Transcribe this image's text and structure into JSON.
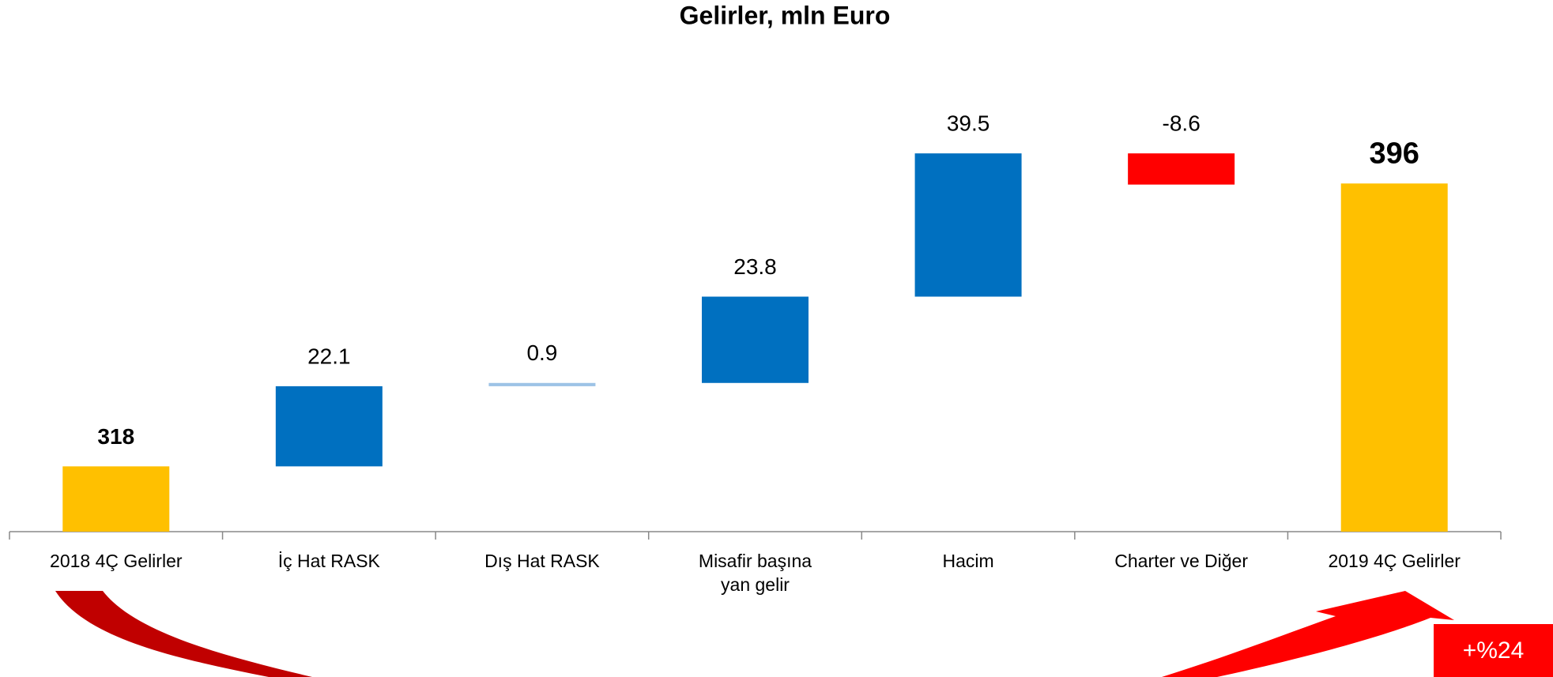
{
  "chart_data": {
    "type": "waterfall",
    "title": "Gelirler, mln Euro",
    "categories": [
      "2018 4Ç Gelirler",
      "İç Hat RASK",
      "Dış Hat RASK",
      "Misafir başına\nyan gelir",
      "Hacim",
      "Charter ve Diğer",
      "2019 4Ç Gelirler"
    ],
    "values": [
      318,
      22.1,
      0.9,
      23.8,
      39.5,
      -8.6,
      396
    ],
    "colors": [
      "#FFC000",
      "#0070C0",
      "#9DC3E6",
      "#0070C0",
      "#0070C0",
      "#FF0000",
      "#FFC000"
    ],
    "ylim": [
      300,
      410
    ],
    "annotation": "+%24"
  }
}
